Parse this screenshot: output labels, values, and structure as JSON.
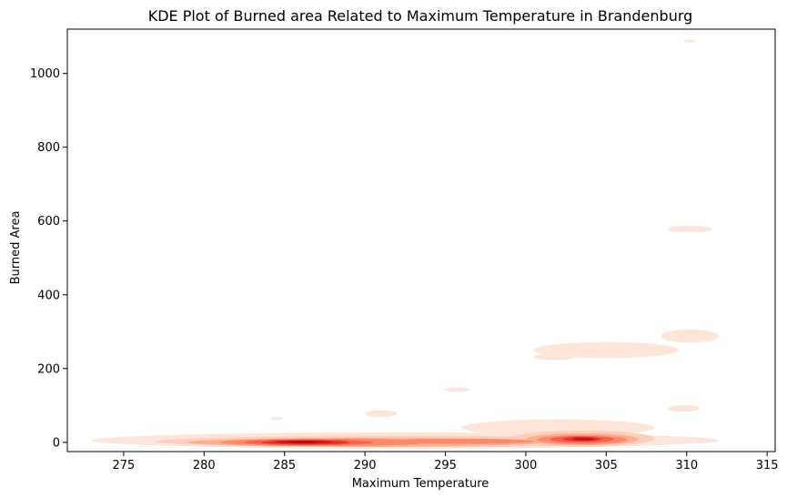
{
  "chart_data": {
    "type": "kde",
    "title": "KDE Plot of Burned area Related to Maximum Temperature in Brandenburg",
    "xlabel": "Maximum Temperature",
    "ylabel": "Burned Area",
    "xlim": [
      271.5,
      315.5
    ],
    "ylim": [
      -25,
      1120
    ],
    "xticks": [
      275,
      280,
      285,
      290,
      295,
      300,
      305,
      310,
      315
    ],
    "yticks": [
      0,
      200,
      400,
      600,
      800,
      1000
    ],
    "colormap": "Reds",
    "grid": false,
    "level_colors": [
      "#fee5d9",
      "#fdd0bd",
      "#fcae91",
      "#fb8a6a",
      "#f4624a",
      "#e03530",
      "#c4161c",
      "#a50f15"
    ],
    "regions": [
      {
        "level": 0,
        "cx": 292.5,
        "cy": 5,
        "rx": 19.5,
        "ry": 22
      },
      {
        "level": 0,
        "cx": 302,
        "cy": 40,
        "rx": 6,
        "ry": 22
      },
      {
        "level": 0,
        "cx": 305,
        "cy": 250,
        "rx": 4.5,
        "ry": 22
      },
      {
        "level": 0,
        "cx": 301.8,
        "cy": 232,
        "rx": 1.3,
        "ry": 9
      },
      {
        "level": 0,
        "cx": 310.2,
        "cy": 288,
        "rx": 1.8,
        "ry": 18
      },
      {
        "level": 0,
        "cx": 310.2,
        "cy": 578,
        "rx": 1.4,
        "ry": 9
      },
      {
        "level": 0,
        "cx": 310.2,
        "cy": 1088,
        "rx": 0.4,
        "ry": 4
      },
      {
        "level": 0,
        "cx": 309.8,
        "cy": 92,
        "rx": 1,
        "ry": 9
      },
      {
        "level": 0,
        "cx": 291,
        "cy": 78,
        "rx": 1,
        "ry": 9
      },
      {
        "level": 0,
        "cx": 295.7,
        "cy": 143,
        "rx": 0.8,
        "ry": 6
      },
      {
        "level": 0,
        "cx": 284.5,
        "cy": 65,
        "rx": 0.4,
        "ry": 4
      },
      {
        "level": 1,
        "cx": 292,
        "cy": 2,
        "rx": 15,
        "ry": 16
      },
      {
        "level": 1,
        "cx": 303.5,
        "cy": 10,
        "rx": 4.5,
        "ry": 22
      },
      {
        "level": 2,
        "cx": 290,
        "cy": 0,
        "rx": 11,
        "ry": 12
      },
      {
        "level": 2,
        "cx": 303.5,
        "cy": 8,
        "rx": 3.5,
        "ry": 16
      },
      {
        "level": 3,
        "cx": 287.5,
        "cy": 0,
        "rx": 6.5,
        "ry": 10
      },
      {
        "level": 3,
        "cx": 296,
        "cy": 3,
        "rx": 4.5,
        "ry": 7
      },
      {
        "level": 3,
        "cx": 303.5,
        "cy": 7,
        "rx": 2.8,
        "ry": 12
      },
      {
        "level": 4,
        "cx": 286.5,
        "cy": 0,
        "rx": 4,
        "ry": 8
      },
      {
        "level": 4,
        "cx": 303.5,
        "cy": 8,
        "rx": 2,
        "ry": 9
      },
      {
        "level": 5,
        "cx": 286.3,
        "cy": 0,
        "rx": 2.7,
        "ry": 6
      },
      {
        "level": 5,
        "cx": 303.5,
        "cy": 9,
        "rx": 1.2,
        "ry": 6
      },
      {
        "level": 6,
        "cx": 286.2,
        "cy": 1,
        "rx": 1.8,
        "ry": 4
      },
      {
        "level": 6,
        "cx": 303.6,
        "cy": 9,
        "rx": 0.7,
        "ry": 4
      },
      {
        "level": 7,
        "cx": 286.1,
        "cy": 1,
        "rx": 0.9,
        "ry": 2.5
      }
    ]
  }
}
